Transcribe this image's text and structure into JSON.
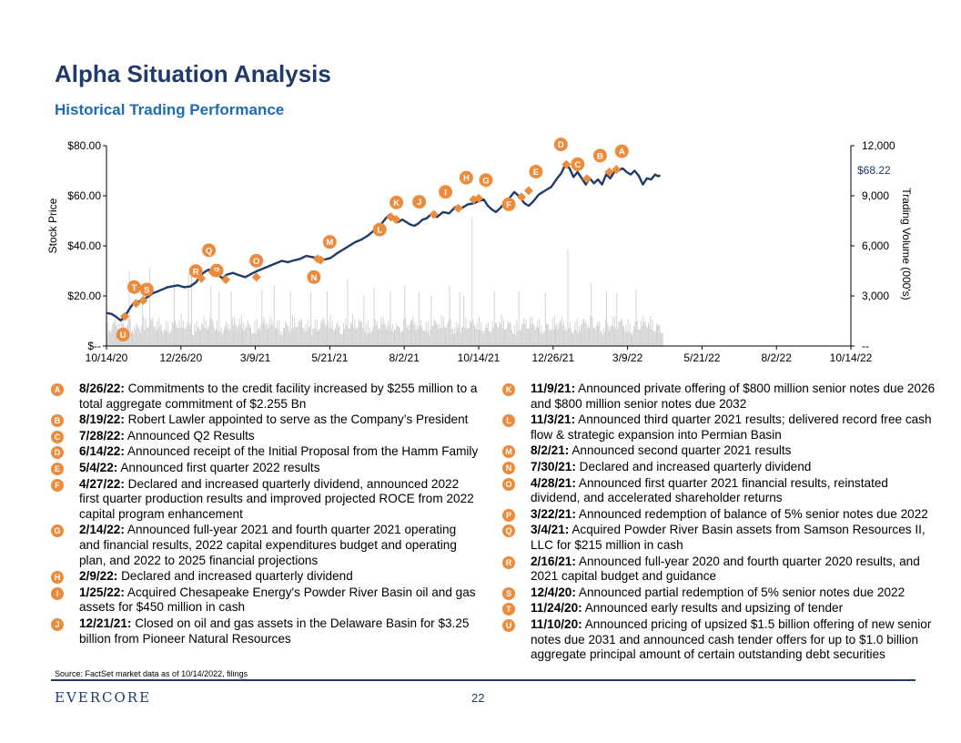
{
  "title": "Alpha Situation Analysis",
  "subtitle": "Historical Trading Performance",
  "chart_data": {
    "type": "line",
    "title": "Historical Trading Performance",
    "x_start": "10/14/20",
    "x_end": "10/14/22",
    "xticks": [
      "10/14/20",
      "12/26/20",
      "3/9/21",
      "5/21/21",
      "8/2/21",
      "10/14/21",
      "12/26/21",
      "3/9/22",
      "5/21/22",
      "8/2/22",
      "10/14/22"
    ],
    "ylabel": "Stock Price",
    "y2label": "Trading Volume (000's)",
    "ylim": [
      0,
      80
    ],
    "y2lim": [
      0,
      12000
    ],
    "yticks": [
      "$--",
      "$20.00",
      "$40.00",
      "$60.00",
      "$80.00"
    ],
    "y2ticks": [
      "--",
      "3,000",
      "6,000",
      "9,000",
      "12,000"
    ],
    "last_price_label": "$68.22",
    "price_series": {
      "name": "Stock Price",
      "color": "#1f3a6b",
      "points": [
        [
          0,
          13.2
        ],
        [
          5,
          12.8
        ],
        [
          10,
          11.5
        ],
        [
          14,
          10.2
        ],
        [
          18,
          11.8
        ],
        [
          22,
          14.5
        ],
        [
          26,
          16.8
        ],
        [
          30,
          17.5
        ],
        [
          35,
          18.2
        ],
        [
          40,
          19.5
        ],
        [
          45,
          21.0
        ],
        [
          50,
          21.8
        ],
        [
          56,
          22.8
        ],
        [
          60,
          23.5
        ],
        [
          64,
          23.8
        ],
        [
          70,
          24.2
        ],
        [
          76,
          23.5
        ],
        [
          82,
          23.8
        ],
        [
          88,
          25.5
        ],
        [
          92,
          28.2
        ],
        [
          96,
          29.5
        ],
        [
          100,
          30.5
        ],
        [
          104,
          29.5
        ],
        [
          110,
          28.2
        ],
        [
          114,
          27.0
        ],
        [
          118,
          28.5
        ],
        [
          124,
          29.2
        ],
        [
          130,
          28.3
        ],
        [
          136,
          27.5
        ],
        [
          142,
          28.8
        ],
        [
          148,
          30.0
        ],
        [
          154,
          31.0
        ],
        [
          160,
          32.0
        ],
        [
          166,
          33.0
        ],
        [
          172,
          34.0
        ],
        [
          178,
          33.5
        ],
        [
          184,
          34.2
        ],
        [
          190,
          34.8
        ],
        [
          196,
          36.0
        ],
        [
          202,
          35.5
        ],
        [
          208,
          35.0
        ],
        [
          214,
          34.5
        ],
        [
          220,
          35.2
        ],
        [
          226,
          37.0
        ],
        [
          232,
          38.5
        ],
        [
          238,
          40.0
        ],
        [
          244,
          41.5
        ],
        [
          250,
          42.5
        ],
        [
          256,
          44.0
        ],
        [
          262,
          46.0
        ],
        [
          268,
          48.0
        ],
        [
          274,
          51.0
        ],
        [
          278,
          52.5
        ],
        [
          282,
          51.5
        ],
        [
          286,
          49.5
        ],
        [
          290,
          50.5
        ],
        [
          294,
          49.5
        ],
        [
          298,
          48.5
        ],
        [
          302,
          48.0
        ],
        [
          306,
          49.0
        ],
        [
          310,
          50.5
        ],
        [
          314,
          51.0
        ],
        [
          318,
          52.5
        ],
        [
          324,
          51.5
        ],
        [
          330,
          53.5
        ],
        [
          336,
          53.0
        ],
        [
          342,
          55.5
        ],
        [
          348,
          55.0
        ],
        [
          354,
          56.5
        ],
        [
          360,
          57.0
        ],
        [
          366,
          58.0
        ],
        [
          370,
          58.5
        ],
        [
          374,
          56.0
        ],
        [
          378,
          54.5
        ],
        [
          382,
          53.5
        ],
        [
          386,
          55.0
        ],
        [
          390,
          57.0
        ],
        [
          396,
          59.5
        ],
        [
          400,
          61.5
        ],
        [
          404,
          60.0
        ],
        [
          410,
          57.0
        ],
        [
          414,
          56.0
        ],
        [
          418,
          57.5
        ],
        [
          424,
          60.5
        ],
        [
          430,
          62.0
        ],
        [
          436,
          63.5
        ],
        [
          442,
          67.0
        ],
        [
          446,
          69.0
        ],
        [
          450,
          72.5
        ],
        [
          454,
          71.0
        ],
        [
          458,
          67.5
        ],
        [
          462,
          69.5
        ],
        [
          466,
          67.0
        ],
        [
          470,
          64.5
        ],
        [
          474,
          67.0
        ],
        [
          478,
          65.0
        ],
        [
          482,
          66.5
        ],
        [
          486,
          64.5
        ],
        [
          490,
          68.5
        ],
        [
          494,
          67.0
        ],
        [
          498,
          69.5
        ],
        [
          502,
          70.0
        ],
        [
          506,
          71.0
        ],
        [
          510,
          69.5
        ],
        [
          514,
          68.5
        ],
        [
          518,
          70.0
        ],
        [
          522,
          68.0
        ],
        [
          526,
          64.5
        ],
        [
          530,
          67.0
        ],
        [
          534,
          66.5
        ],
        [
          538,
          68.5
        ],
        [
          541,
          67.8
        ],
        [
          543,
          68.2
        ]
      ]
    },
    "volume_series": {
      "name": "Trading Volume (000's)",
      "color": "#d3d3d3",
      "peaks": [
        [
          22,
          4500
        ],
        [
          35,
          3600
        ],
        [
          42,
          4700
        ],
        [
          66,
          3900
        ],
        [
          80,
          4400
        ],
        [
          83,
          4200
        ],
        [
          102,
          3600
        ],
        [
          110,
          3300
        ],
        [
          122,
          3300
        ],
        [
          152,
          3400
        ],
        [
          164,
          3600
        ],
        [
          180,
          3300
        ],
        [
          200,
          3200
        ],
        [
          216,
          3300
        ],
        [
          236,
          4000
        ],
        [
          252,
          3100
        ],
        [
          262,
          3500
        ],
        [
          278,
          3300
        ],
        [
          292,
          3600
        ],
        [
          306,
          3200
        ],
        [
          318,
          3000
        ],
        [
          336,
          3600
        ],
        [
          346,
          3200
        ],
        [
          350,
          3000
        ],
        [
          358,
          7700
        ],
        [
          380,
          3300
        ],
        [
          404,
          3300
        ],
        [
          430,
          3200
        ],
        [
          452,
          5800
        ],
        [
          475,
          3800
        ],
        [
          490,
          3300
        ],
        [
          500,
          3200
        ],
        [
          519,
          3400
        ]
      ]
    },
    "event_markers": [
      {
        "label": "A",
        "date": "8/26/22",
        "day": 500,
        "price": 70.5
      },
      {
        "label": "B",
        "date": "8/19/22",
        "day": 493,
        "price": 69.5
      },
      {
        "label": "C",
        "date": "7/28/22",
        "day": 471,
        "price": 66.8
      },
      {
        "label": "D",
        "date": "6/14:22",
        "day": 451,
        "price": 72.5
      },
      {
        "label": "E",
        "date": "5/4/22",
        "day": 414,
        "price": 62.0
      },
      {
        "label": "F",
        "date": "4/27/22",
        "day": 407,
        "price": 59.5
      },
      {
        "label": "G",
        "date": "2/14:22",
        "day": 365,
        "price": 59.0
      },
      {
        "label": "H",
        "date": "2/9/22",
        "day": 360,
        "price": 58.5
      },
      {
        "label": "I",
        "date": "1/25/22",
        "day": 345,
        "price": 55.0
      },
      {
        "label": "J",
        "date": "12/21/21",
        "day": 321,
        "price": 52.5
      },
      {
        "label": "K",
        "date": "11/9/21",
        "day": 279,
        "price": 51.5
      },
      {
        "label": "L",
        "date": "11/3/21",
        "day": 284,
        "price": 50.5
      },
      {
        "label": "M",
        "date": "8/2/21",
        "day": 210,
        "price": 34.3
      },
      {
        "label": "N",
        "date": "7/30/21",
        "day": 207,
        "price": 34.8
      },
      {
        "label": "O",
        "date": "4/28/21",
        "day": 147,
        "price": 27.5
      },
      {
        "label": "P",
        "date": "3/22/21",
        "day": 117,
        "price": 26.5
      },
      {
        "label": "Q",
        "date": "3/4/21",
        "day": 104,
        "price": 29.5
      },
      {
        "label": "R",
        "date": "2/16/21",
        "day": 93,
        "price": 27.0
      },
      {
        "label": "S",
        "date": "12/4/20",
        "day": 36,
        "price": 18.2
      },
      {
        "label": "T",
        "date": "11/24/20",
        "day": 29,
        "price": 17.0
      },
      {
        "label": "U",
        "date": "11/10/20",
        "day": 18,
        "price": 11.8
      }
    ]
  },
  "events_left": [
    {
      "letter": "A",
      "date": "8/26/22:",
      "text": " Commitments to the credit facility increased by $255 million to a total aggregate commitment of $2.255 Bn"
    },
    {
      "letter": "B",
      "date": "8/19/22:",
      "text": " Robert Lawler appointed to serve as the Company’s President"
    },
    {
      "letter": "C",
      "date": "7/28/22:",
      "text": " Announced Q2 Results"
    },
    {
      "letter": "D",
      "date": "6/14/22:",
      "text": " Announced receipt of the Initial Proposal from the Hamm Family"
    },
    {
      "letter": "E",
      "date": "5/4/22:",
      "text": " Announced first quarter 2022 results"
    },
    {
      "letter": "F",
      "date": "4/27/22:",
      "text": " Declared and increased quarterly dividend, announced 2022 first quarter production results and improved projected ROCE from 2022 capital program enhancement"
    },
    {
      "letter": "G",
      "date": "2/14/22:",
      "text": " Announced full-year 2021 and fourth quarter 2021 operating and financial results, 2022 capital expenditures budget and operating plan, and 2022 to 2025 financial projections"
    },
    {
      "letter": "H",
      "date": "2/9/22:",
      "text": " Declared and increased quarterly dividend"
    },
    {
      "letter": "I",
      "date": "1/25/22:",
      "text": " Acquired Chesapeake Energy's Powder River Basin oil and gas assets for $450 million in cash"
    },
    {
      "letter": "J",
      "date": "12/21/21:",
      "text": " Closed on oil and gas assets in the Delaware Basin for $3.25 billion from Pioneer Natural Resources"
    }
  ],
  "events_right": [
    {
      "letter": "K",
      "date": "11/9/21:",
      "text": " Announced private offering of $800 million senior notes due 2026 and $800 million senior notes due 2032"
    },
    {
      "letter": "L",
      "date": "11/3/21:",
      "text": " Announced third quarter 2021 results; delivered record free cash flow & strategic expansion into Permian Basin"
    },
    {
      "letter": "M",
      "date": "8/2/21:",
      "text": " Announced second quarter 2021 results"
    },
    {
      "letter": "N",
      "date": "7/30/21:",
      "text": " Declared and increased quarterly dividend"
    },
    {
      "letter": "O",
      "date": "4/28/21:",
      "text": " Announced first quarter 2021 financial results, reinstated dividend, and accelerated shareholder returns"
    },
    {
      "letter": "P",
      "date": "3/22/21:",
      "text": " Announced redemption of balance of 5% senior notes due 2022"
    },
    {
      "letter": "Q",
      "date": "3/4/21:",
      "text": " Acquired Powder River Basin assets from Samson Resources II, LLC for $215 million in cash"
    },
    {
      "letter": "R",
      "date": "2/16/21:",
      "text": " Announced full-year 2020 and fourth quarter 2020 results, and 2021 capital budget and guidance"
    },
    {
      "letter": "S",
      "date": "12/4/20:",
      "text": " Announced partial redemption of 5% senior notes due 2022"
    },
    {
      "letter": "T",
      "date": "11/24/20:",
      "text": " Announced early results and upsizing of tender"
    },
    {
      "letter": "U",
      "date": "11/10/20:",
      "text": " Announced pricing of upsized $1.5 billion offering of new senior notes due 2031 and announced cash tender offers for up to $1.0 billion aggregate principal amount of certain outstanding debt securities"
    }
  ],
  "footer": {
    "source": "Source: FactSet market data as of 10/14/2022, filings",
    "logo": "EVERCORE",
    "page_number": "22"
  },
  "colors": {
    "title": "#1f3a6b",
    "subtitle": "#1f6bb5",
    "marker": "#ec8b3c",
    "price_line": "#1f3a6b",
    "volume": "#d3d3d3"
  }
}
